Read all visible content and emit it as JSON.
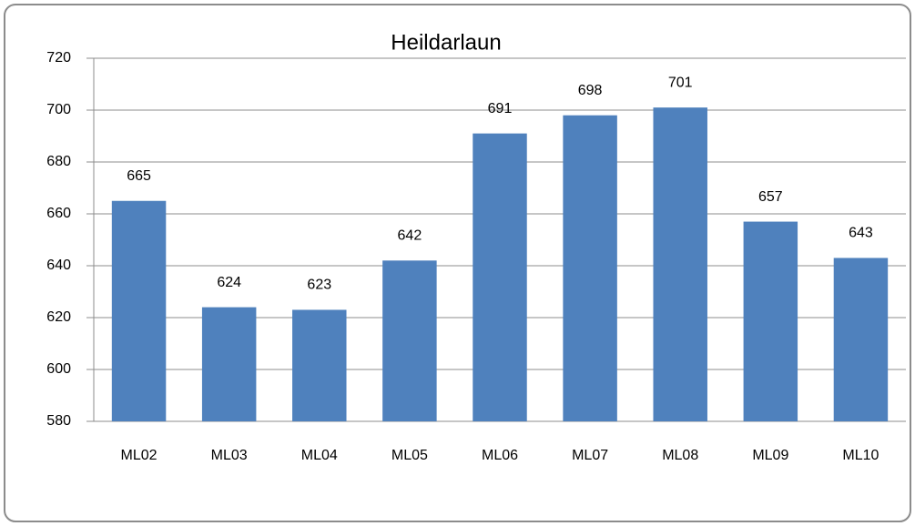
{
  "chart_data": {
    "type": "bar",
    "title": "Heildarlaun",
    "categories": [
      "ML02",
      "ML03",
      "ML04",
      "ML05",
      "ML06",
      "ML07",
      "ML08",
      "ML09",
      "ML10"
    ],
    "values": [
      665,
      624,
      623,
      642,
      691,
      698,
      701,
      657,
      643
    ],
    "color": "#4f81bd",
    "ylim": [
      580,
      720
    ],
    "yticks": [
      580,
      600,
      620,
      640,
      660,
      680,
      700,
      720
    ],
    "grid": true
  }
}
